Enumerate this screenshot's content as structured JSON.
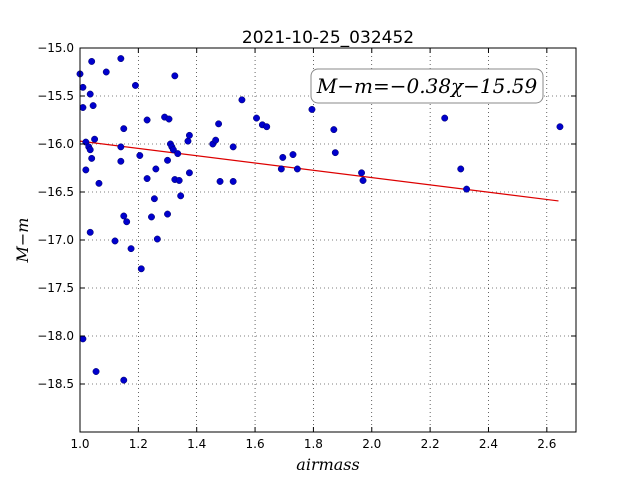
{
  "chart_data": {
    "type": "scatter",
    "title": "2021-10-25_032452",
    "xlabel": "airmass",
    "ylabel": "M−m",
    "xlim": [
      1.0,
      2.7
    ],
    "ylim": [
      -19.0,
      -15.0
    ],
    "y_inverted": true,
    "grid": true,
    "x_ticks": [
      1.0,
      1.2,
      1.4,
      1.6,
      1.8,
      2.0,
      2.2,
      2.4,
      2.6
    ],
    "x_tick_labels": [
      "1.0",
      "1.2",
      "1.4",
      "1.6",
      "1.8",
      "2.0",
      "2.2",
      "2.4",
      "2.6"
    ],
    "y_ticks": [
      -15.0,
      -15.5,
      -16.0,
      -16.5,
      -17.0,
      -17.5,
      -18.0,
      -18.5
    ],
    "y_tick_labels": [
      "−15.0",
      "−15.5",
      "−16.0",
      "−16.5",
      "−17.0",
      "−17.5",
      "−18.0",
      "−18.5"
    ],
    "annotation": "M−m=−0.38χ−15.59",
    "marker_color": "#0000cc",
    "fit_color": "#dd0000",
    "fit_line": {
      "slope": -0.38,
      "intercept": -15.59,
      "x_range": [
        1.0,
        2.64
      ]
    },
    "points": [
      {
        "x": 1.0,
        "y": -15.27
      },
      {
        "x": 1.01,
        "y": -15.41
      },
      {
        "x": 1.01,
        "y": -15.62
      },
      {
        "x": 1.02,
        "y": -15.98
      },
      {
        "x": 1.02,
        "y": -16.27
      },
      {
        "x": 1.01,
        "y": -18.03
      },
      {
        "x": 1.03,
        "y": -16.03
      },
      {
        "x": 1.035,
        "y": -16.06
      },
      {
        "x": 1.035,
        "y": -15.48
      },
      {
        "x": 1.04,
        "y": -15.14
      },
      {
        "x": 1.045,
        "y": -15.6
      },
      {
        "x": 1.04,
        "y": -16.15
      },
      {
        "x": 1.05,
        "y": -15.95
      },
      {
        "x": 1.035,
        "y": -16.92
      },
      {
        "x": 1.055,
        "y": -18.37
      },
      {
        "x": 1.065,
        "y": -16.41
      },
      {
        "x": 1.09,
        "y": -15.25
      },
      {
        "x": 1.12,
        "y": -17.01
      },
      {
        "x": 1.14,
        "y": -15.11
      },
      {
        "x": 1.14,
        "y": -16.03
      },
      {
        "x": 1.14,
        "y": -16.18
      },
      {
        "x": 1.15,
        "y": -15.84
      },
      {
        "x": 1.15,
        "y": -16.75
      },
      {
        "x": 1.15,
        "y": -18.46
      },
      {
        "x": 1.16,
        "y": -16.81
      },
      {
        "x": 1.175,
        "y": -17.09
      },
      {
        "x": 1.19,
        "y": -15.39
      },
      {
        "x": 1.205,
        "y": -16.12
      },
      {
        "x": 1.21,
        "y": -17.3
      },
      {
        "x": 1.23,
        "y": -15.75
      },
      {
        "x": 1.23,
        "y": -16.36
      },
      {
        "x": 1.245,
        "y": -16.76
      },
      {
        "x": 1.255,
        "y": -16.57
      },
      {
        "x": 1.26,
        "y": -16.26
      },
      {
        "x": 1.265,
        "y": -16.99
      },
      {
        "x": 1.29,
        "y": -15.72
      },
      {
        "x": 1.3,
        "y": -16.17
      },
      {
        "x": 1.3,
        "y": -16.73
      },
      {
        "x": 1.305,
        "y": -15.74
      },
      {
        "x": 1.31,
        "y": -16.0
      },
      {
        "x": 1.315,
        "y": -16.03
      },
      {
        "x": 1.32,
        "y": -16.06
      },
      {
        "x": 1.325,
        "y": -15.29
      },
      {
        "x": 1.325,
        "y": -16.37
      },
      {
        "x": 1.335,
        "y": -16.1
      },
      {
        "x": 1.34,
        "y": -16.38
      },
      {
        "x": 1.345,
        "y": -16.54
      },
      {
        "x": 1.37,
        "y": -15.97
      },
      {
        "x": 1.375,
        "y": -15.91
      },
      {
        "x": 1.375,
        "y": -16.3
      },
      {
        "x": 1.455,
        "y": -16.0
      },
      {
        "x": 1.465,
        "y": -15.96
      },
      {
        "x": 1.475,
        "y": -15.79
      },
      {
        "x": 1.48,
        "y": -16.39
      },
      {
        "x": 1.525,
        "y": -16.03
      },
      {
        "x": 1.525,
        "y": -16.39
      },
      {
        "x": 1.555,
        "y": -15.54
      },
      {
        "x": 1.605,
        "y": -15.73
      },
      {
        "x": 1.625,
        "y": -15.8
      },
      {
        "x": 1.64,
        "y": -15.82
      },
      {
        "x": 1.69,
        "y": -16.26
      },
      {
        "x": 1.695,
        "y": -16.14
      },
      {
        "x": 1.73,
        "y": -16.11
      },
      {
        "x": 1.745,
        "y": -16.26
      },
      {
        "x": 1.795,
        "y": -15.64
      },
      {
        "x": 1.87,
        "y": -15.85
      },
      {
        "x": 1.875,
        "y": -16.09
      },
      {
        "x": 1.965,
        "y": -16.3
      },
      {
        "x": 1.97,
        "y": -16.38
      },
      {
        "x": 2.25,
        "y": -15.73
      },
      {
        "x": 2.305,
        "y": -16.26
      },
      {
        "x": 2.325,
        "y": -16.47
      },
      {
        "x": 2.645,
        "y": -15.82
      }
    ]
  }
}
